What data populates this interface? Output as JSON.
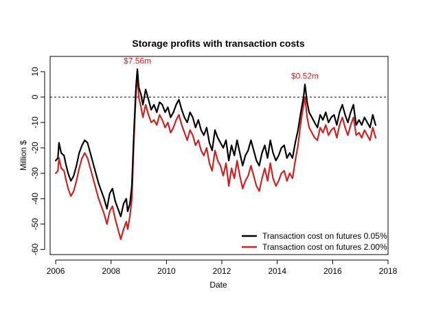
{
  "chart_data": {
    "type": "line",
    "title": "Storage profits with transaction costs",
    "xlabel": "Date",
    "ylabel": "Million $",
    "xlim": [
      2005.8,
      2018.0
    ],
    "ylim": [
      -62,
      16
    ],
    "x_ticks": [
      2006,
      2008,
      2010,
      2012,
      2014,
      2016,
      2018
    ],
    "y_ticks": [
      -60,
      -50,
      -40,
      -30,
      -20,
      -10,
      0,
      10
    ],
    "x_tick_labels": [
      "2006",
      "2008",
      "2010",
      "2012",
      "2014",
      "2016",
      "2018"
    ],
    "y_tick_labels": [
      "-60",
      "-50",
      "-40",
      "-30",
      "-20",
      "-10",
      "0",
      "10"
    ],
    "reference_line": {
      "y": 0,
      "style": "dashed",
      "color": "#000000"
    },
    "grid": false,
    "legend_position": "bottom-right",
    "x": [
      2006.0,
      2006.08,
      2006.12,
      2006.2,
      2006.3,
      2006.38,
      2006.45,
      2006.55,
      2006.65,
      2006.75,
      2006.85,
      2006.95,
      2007.05,
      2007.15,
      2007.25,
      2007.35,
      2007.45,
      2007.55,
      2007.65,
      2007.75,
      2007.85,
      2007.95,
      2008.05,
      2008.15,
      2008.25,
      2008.35,
      2008.45,
      2008.55,
      2008.6,
      2008.68,
      2008.75,
      2008.82,
      2008.9,
      2008.95,
      2009.0,
      2009.08,
      2009.15,
      2009.25,
      2009.35,
      2009.45,
      2009.55,
      2009.65,
      2009.75,
      2009.85,
      2009.95,
      2010.05,
      2010.15,
      2010.25,
      2010.35,
      2010.45,
      2010.55,
      2010.65,
      2010.75,
      2010.85,
      2010.95,
      2011.05,
      2011.15,
      2011.25,
      2011.35,
      2011.45,
      2011.55,
      2011.65,
      2011.75,
      2011.85,
      2011.95,
      2012.05,
      2012.15,
      2012.25,
      2012.35,
      2012.45,
      2012.55,
      2012.65,
      2012.75,
      2012.85,
      2012.95,
      2013.05,
      2013.15,
      2013.25,
      2013.35,
      2013.45,
      2013.55,
      2013.65,
      2013.75,
      2013.85,
      2013.95,
      2014.05,
      2014.15,
      2014.25,
      2014.35,
      2014.45,
      2014.55,
      2014.65,
      2014.75,
      2014.85,
      2014.95,
      2015.0,
      2015.08,
      2015.15,
      2015.25,
      2015.35,
      2015.45,
      2015.55,
      2015.65,
      2015.75,
      2015.85,
      2015.95,
      2016.05,
      2016.15,
      2016.25,
      2016.35,
      2016.45,
      2016.55,
      2016.65,
      2016.75,
      2016.85,
      2016.95,
      2017.05,
      2017.15,
      2017.25,
      2017.35,
      2017.45,
      2017.5,
      2017.55
    ],
    "series": [
      {
        "name": "Transaction cost on futures 0.05%",
        "color": "#000000",
        "values": [
          -25,
          -24,
          -18,
          -22,
          -23,
          -27,
          -30,
          -33,
          -31,
          -27,
          -22,
          -19,
          -17,
          -18,
          -22,
          -26,
          -30,
          -34,
          -37,
          -40,
          -44,
          -38,
          -36,
          -41,
          -44,
          -47,
          -42,
          -40,
          -45,
          -42,
          -35,
          -15,
          4,
          11,
          4,
          1,
          -3,
          3,
          -1,
          -5,
          -3,
          -6,
          -2,
          -3,
          -6,
          -4,
          -8,
          -6,
          -3,
          -1,
          -5,
          -8,
          -10,
          -6,
          -8,
          -12,
          -9,
          -13,
          -15,
          -12,
          -18,
          -21,
          -13,
          -16,
          -18,
          -20,
          -17,
          -25,
          -19,
          -23,
          -17,
          -22,
          -27,
          -23,
          -21,
          -17,
          -21,
          -25,
          -27,
          -22,
          -19,
          -24,
          -17,
          -22,
          -25,
          -23,
          -20,
          -19,
          -24,
          -22,
          -24,
          -18,
          -13,
          -6,
          0,
          5,
          -2,
          -6,
          -8,
          -10,
          -12,
          -7,
          -9,
          -6,
          -10,
          -8,
          -7,
          -11,
          -6,
          -3,
          -7,
          -10,
          -6,
          -3,
          -11,
          -9,
          -11,
          -8,
          -10,
          -12,
          -7,
          -9,
          -11
        ]
      },
      {
        "name": "Transaction cost on futures 2.00%",
        "color": "#cc2222",
        "values": [
          -30,
          -29,
          -24,
          -28,
          -29,
          -33,
          -36,
          -39,
          -37,
          -33,
          -28,
          -24,
          -22,
          -24,
          -28,
          -32,
          -36,
          -40,
          -43,
          -46,
          -50,
          -45,
          -43,
          -48,
          -52,
          -56,
          -52,
          -49,
          -52,
          -47,
          -40,
          -18,
          2,
          8,
          0,
          -4,
          -8,
          -3,
          -7,
          -10,
          -9,
          -11,
          -7,
          -9,
          -12,
          -10,
          -14,
          -12,
          -9,
          -7,
          -11,
          -14,
          -17,
          -13,
          -15,
          -19,
          -17,
          -21,
          -23,
          -20,
          -26,
          -29,
          -21,
          -25,
          -27,
          -31,
          -26,
          -35,
          -28,
          -32,
          -25,
          -31,
          -36,
          -33,
          -31,
          -27,
          -31,
          -35,
          -37,
          -32,
          -28,
          -33,
          -26,
          -32,
          -35,
          -33,
          -30,
          -29,
          -33,
          -30,
          -32,
          -25,
          -19,
          -10,
          -3,
          0,
          -8,
          -12,
          -14,
          -16,
          -17,
          -12,
          -14,
          -11,
          -15,
          -13,
          -12,
          -16,
          -11,
          -8,
          -12,
          -15,
          -11,
          -8,
          -15,
          -14,
          -16,
          -13,
          -15,
          -17,
          -12,
          -14,
          -16
        ]
      }
    ],
    "annotations": [
      {
        "text": "$7.56m",
        "x": 2008.95,
        "y": 11,
        "color": "#cc2222"
      },
      {
        "text": "$0.52m",
        "x": 2015.0,
        "y": 5,
        "color": "#cc2222"
      }
    ]
  }
}
